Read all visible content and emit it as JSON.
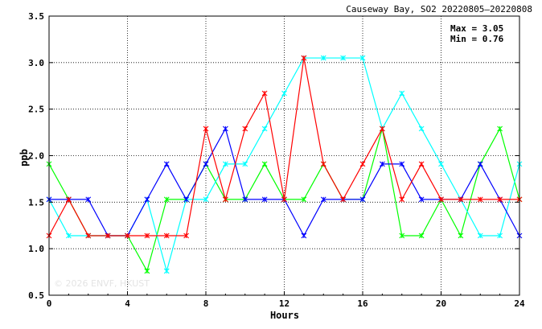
{
  "chart_data": {
    "type": "line",
    "title": "Causeway Bay, SO2 20220805–20220808",
    "xlabel": "Hours",
    "ylabel": "ppb",
    "xlim": [
      0,
      24
    ],
    "ylim": [
      0.5,
      3.5
    ],
    "xticks": [
      0,
      4,
      8,
      12,
      16,
      20,
      24
    ],
    "yticks": [
      0.5,
      1.0,
      1.5,
      2.0,
      2.5,
      3.0,
      3.5
    ],
    "x_tick_labels": [
      "0",
      "4",
      "8",
      "12",
      "16",
      "20",
      "24"
    ],
    "y_tick_labels": [
      "0.5",
      "1.0",
      "1.5",
      "2.0",
      "2.5",
      "3.0",
      "3.5"
    ],
    "grid": true,
    "stats": {
      "max_label": "Max = 3.05",
      "min_label": "Min = 0.76"
    },
    "watermark": "© 2026  ENVF, HKUST",
    "x": [
      0,
      1,
      2,
      3,
      4,
      5,
      6,
      7,
      8,
      9,
      10,
      11,
      12,
      13,
      14,
      15,
      16,
      17,
      18,
      19,
      20,
      21,
      22,
      23,
      24
    ],
    "series": [
      {
        "color": "#00ff00",
        "values": [
          1.91,
          1.53,
          1.14,
          1.14,
          1.14,
          0.76,
          1.53,
          1.53,
          1.91,
          1.53,
          1.53,
          1.91,
          1.53,
          1.53,
          1.91,
          1.53,
          1.53,
          2.29,
          1.14,
          1.14,
          1.53,
          1.14,
          1.91,
          2.29,
          1.53
        ]
      },
      {
        "color": "#00ffff",
        "values": [
          1.53,
          1.14,
          1.14,
          1.14,
          1.14,
          1.53,
          0.76,
          1.53,
          1.53,
          1.91,
          1.91,
          2.29,
          2.67,
          3.05,
          3.05,
          3.05,
          3.05,
          2.29,
          2.67,
          2.29,
          1.91,
          1.53,
          1.14,
          1.14,
          1.91
        ]
      },
      {
        "color": "#0000ff",
        "values": [
          1.53,
          1.53,
          1.53,
          1.14,
          1.14,
          1.53,
          1.91,
          1.53,
          1.91,
          2.29,
          1.53,
          1.53,
          1.53,
          1.14,
          1.53,
          1.53,
          1.53,
          1.91,
          1.91,
          1.53,
          1.53,
          1.53,
          1.91,
          1.53,
          1.14
        ]
      },
      {
        "color": "#ff0000",
        "values": [
          1.14,
          1.53,
          1.14,
          1.14,
          1.14,
          1.14,
          1.14,
          1.14,
          2.29,
          1.53,
          2.29,
          2.67,
          1.53,
          3.05,
          1.91,
          1.53,
          1.91,
          2.29,
          1.53,
          1.91,
          1.53,
          1.53,
          1.53,
          1.53,
          1.53
        ]
      }
    ]
  }
}
